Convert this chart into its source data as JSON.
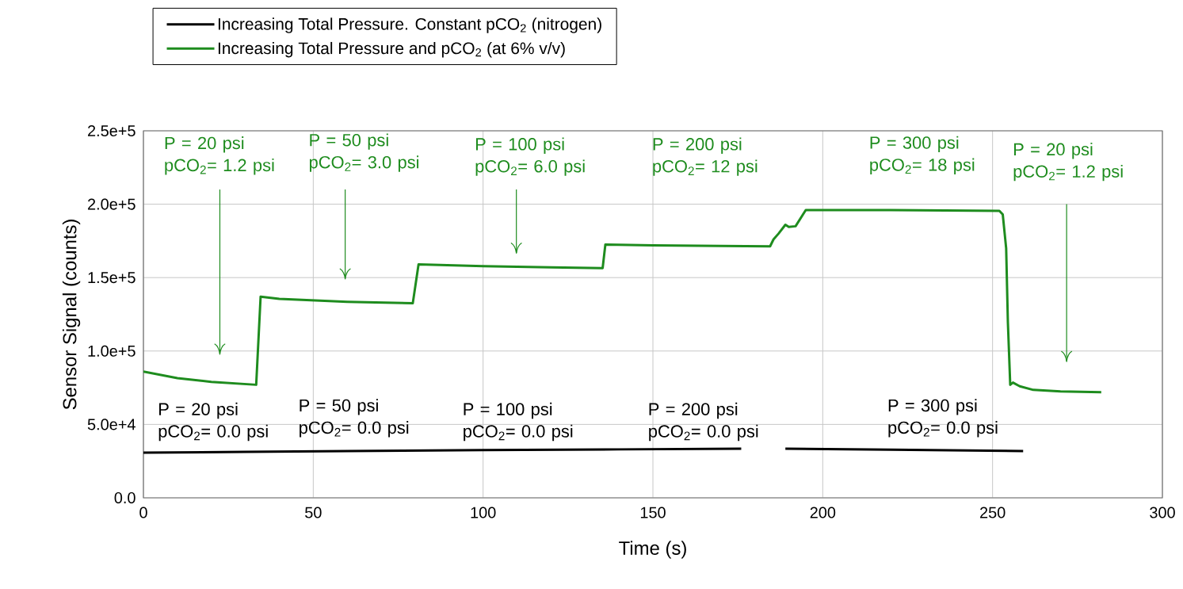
{
  "chart_data": {
    "type": "line",
    "xlabel": "Time (s)",
    "ylabel": "Sensor Signal (counts)",
    "xlim": [
      0,
      300
    ],
    "ylim": [
      0,
      250000
    ],
    "xticks": [
      0,
      50,
      100,
      150,
      200,
      250,
      300
    ],
    "yticks": [
      {
        "value": 0,
        "label": "0.0"
      },
      {
        "value": 50000,
        "label": "5.0e+4"
      },
      {
        "value": 100000,
        "label": "1.0e+5"
      },
      {
        "value": 150000,
        "label": "1.5e+5"
      },
      {
        "value": 200000,
        "label": "2.0e+5"
      },
      {
        "value": 250000,
        "label": "2.5e+5"
      }
    ],
    "grid": true,
    "legend": "top left",
    "marker": "none",
    "line_style": "solid",
    "series": [
      {
        "name": "Increasing Total Pressure. Constant pCO$_{2}$ (nitrogen)",
        "color": "#000000",
        "x": [
          0,
          30,
          60,
          100,
          140,
          176,
          182,
          189,
          220,
          259
        ],
        "values": [
          30800,
          31300,
          31800,
          32500,
          33000,
          33500,
          null,
          33500,
          32800,
          31900
        ]
      },
      {
        "name": "Increasing Total Pressure and pCO$_{2}$ (at 6% v/v)",
        "color": "#1e8c1e",
        "x": [
          0,
          10,
          20,
          33.2,
          34.5,
          40,
          60,
          79.3,
          81,
          100,
          120,
          135.2,
          136,
          150,
          170,
          184.5,
          185.5,
          187,
          189,
          190,
          192,
          195,
          220,
          252,
          253,
          254,
          254.5,
          255.2,
          256,
          258,
          262,
          270,
          282
        ],
        "values": [
          86000,
          81500,
          79000,
          77000,
          137000,
          135500,
          133500,
          132500,
          159000,
          157800,
          157000,
          156500,
          172500,
          172000,
          171500,
          171300,
          176000,
          180000,
          186000,
          184500,
          185000,
          196000,
          196000,
          195500,
          193000,
          170000,
          120000,
          77000,
          78500,
          76000,
          73500,
          72500,
          72000
        ]
      }
    ],
    "annotations": [
      "P = 20 psi pCO$_{2}$= 1.2 psi",
      "P = 50 psi pCO$_{2}$= 3.0 psi",
      "P = 100 psi pCO$_{2}$= 6.0 psi",
      "P = 200 psi pCO$_{2}$= 12 psi",
      "P = 300 psi pCO$_{2}$= 18 psi",
      "P = 20 psi pCO$_{2}$= 1.2 psi",
      "P = 20 psi pCO$_{2}$= 0.0 psi",
      "P = 50 psi pCO$_{2}$= 0.0 psi",
      "P = 100 psi pCO$_{2}$= 0.0 psi",
      "P = 200 psi pCO$_{2}$= 0.0 psi",
      "P = 300 psi pCO$_{2}$= 0.0 psi"
    ]
  }
}
